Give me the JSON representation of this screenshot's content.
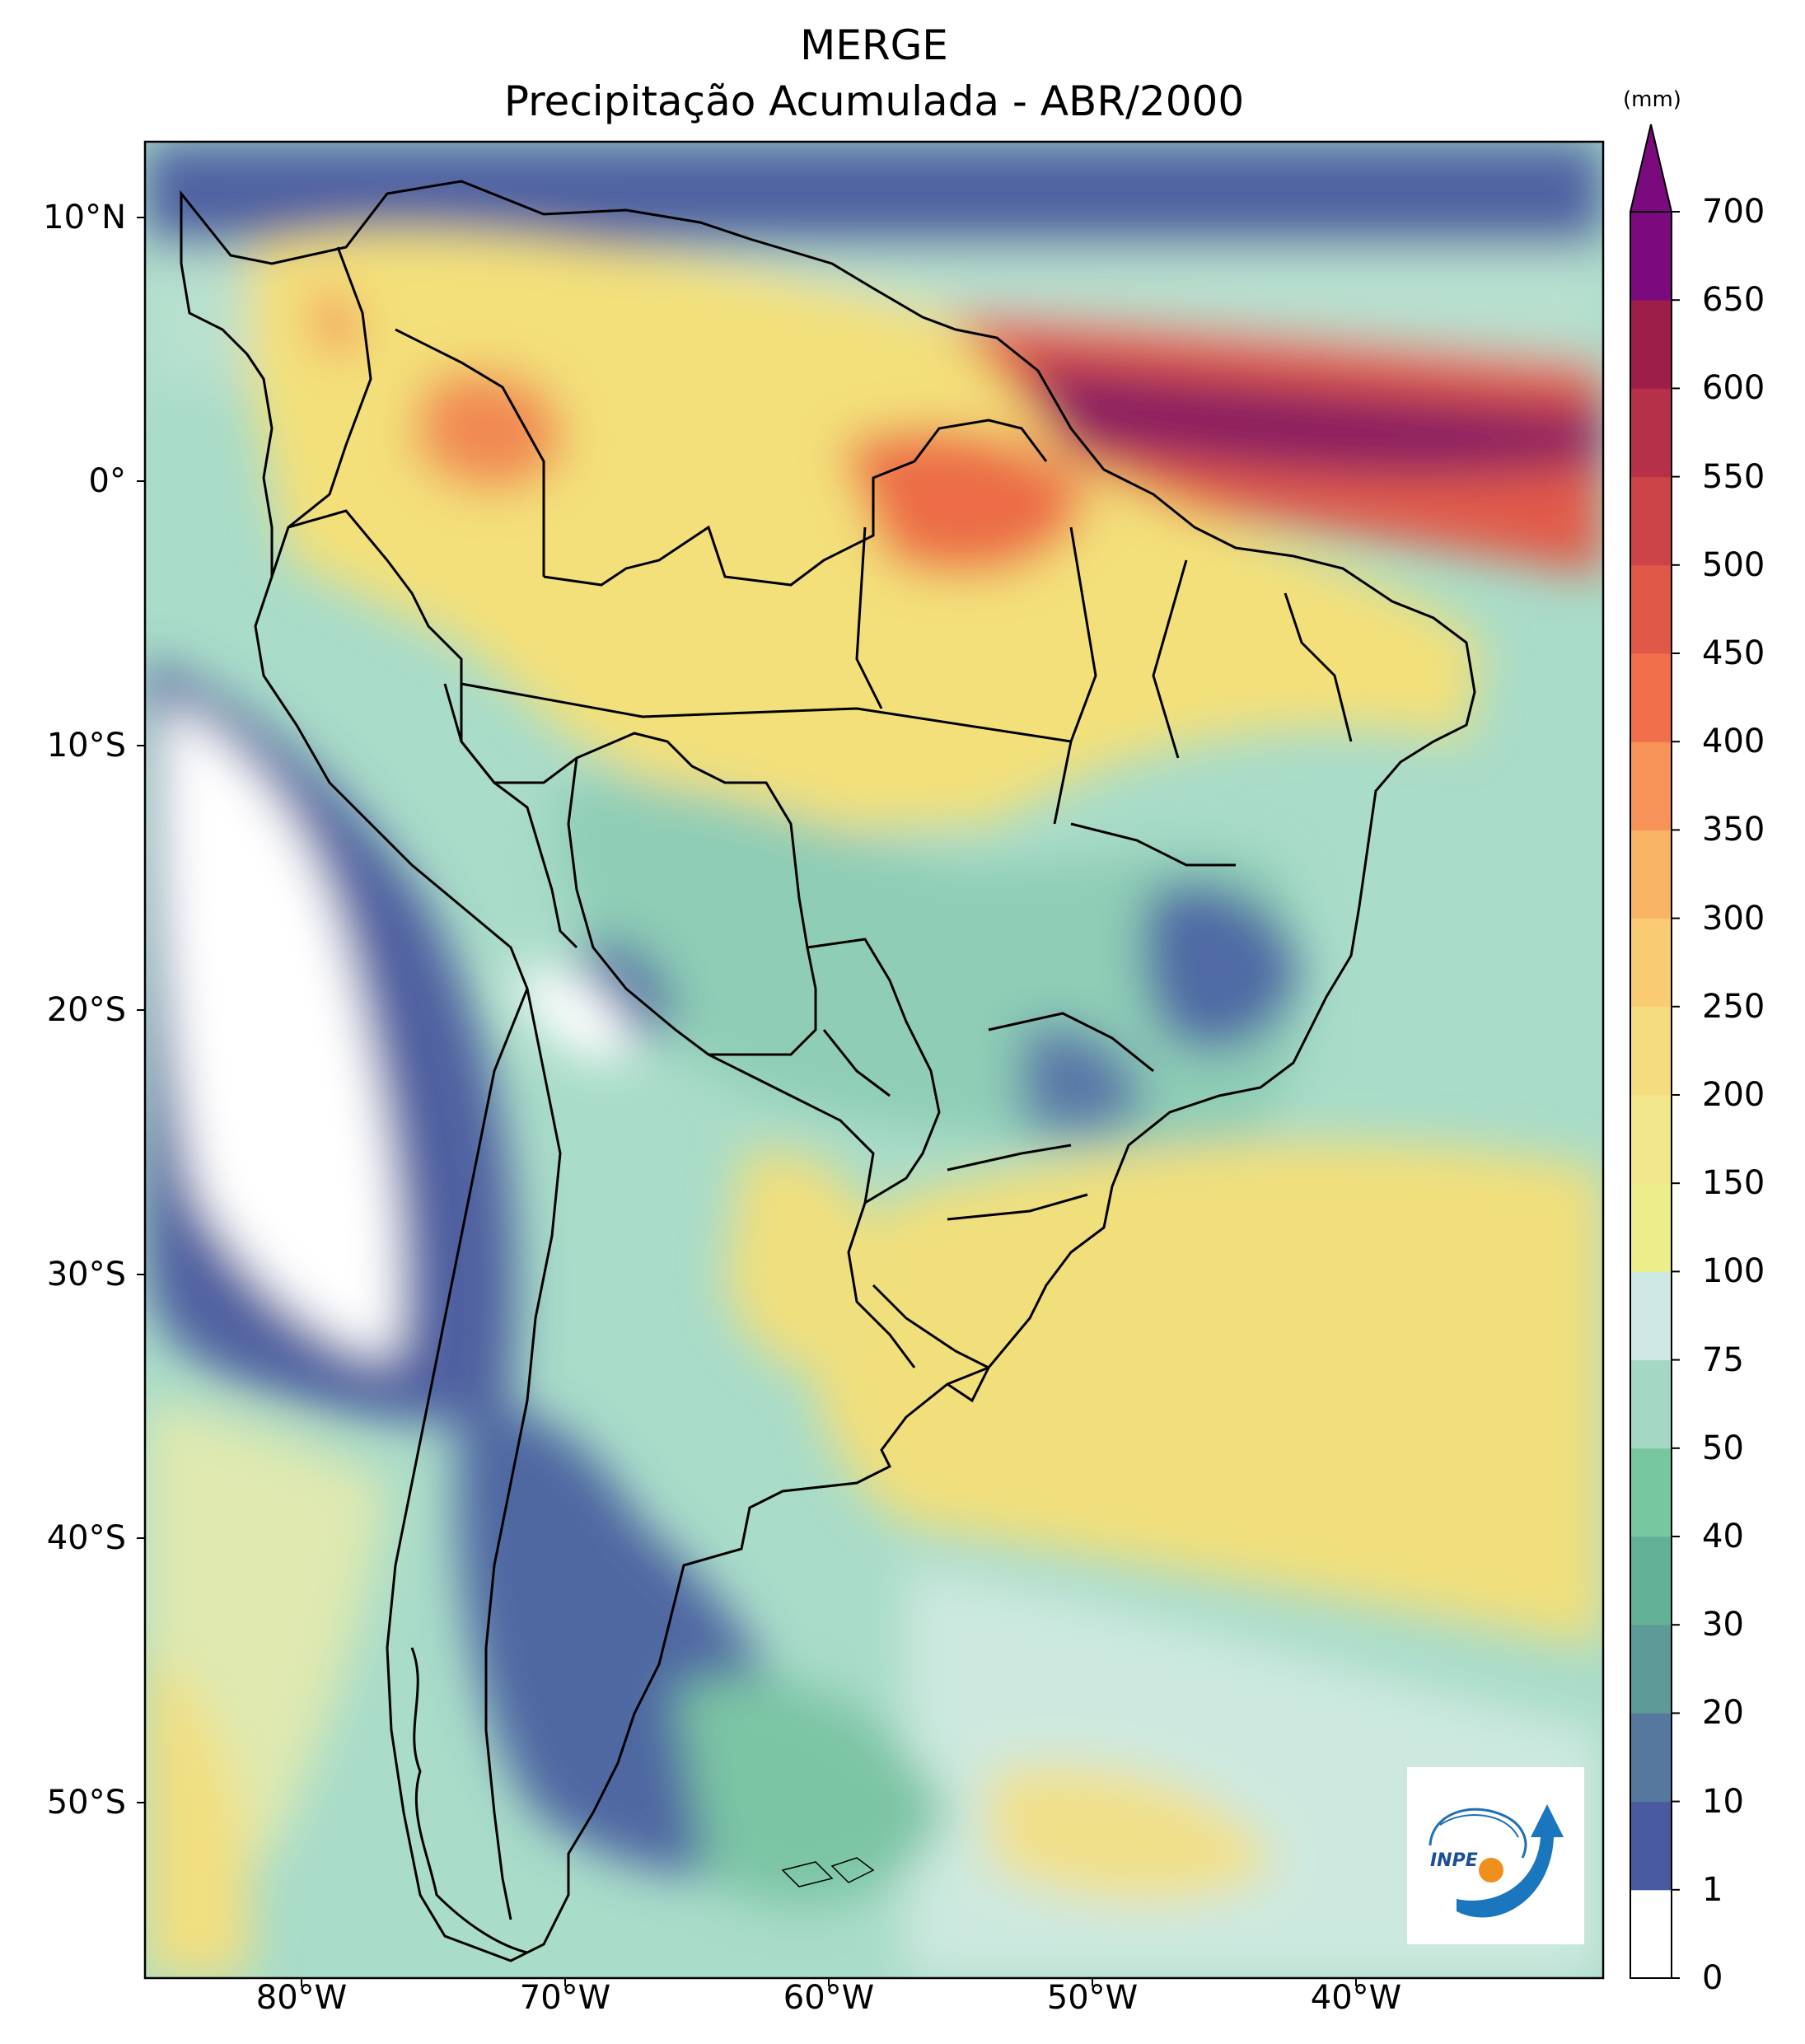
{
  "title_line1": "MERGE",
  "title_line2": "Precipitação Acumulada - ABR/2000",
  "lat_labels": [
    "10°N",
    "0°",
    "10°S",
    "20°S",
    "30°S",
    "40°S",
    "50°S"
  ],
  "lon_labels": [
    "80°W",
    "70°W",
    "60°W",
    "50°W",
    "40°W"
  ],
  "colorbar": {
    "unit": "(mm)",
    "levels": [
      "0",
      "1",
      "10",
      "20",
      "30",
      "40",
      "50",
      "75",
      "100",
      "150",
      "200",
      "250",
      "300",
      "350",
      "400",
      "450",
      "500",
      "550",
      "600",
      "650",
      "700"
    ],
    "colors": [
      "#ffffff",
      "#4a5aa0",
      "#56789e",
      "#5e9a98",
      "#62b096",
      "#76c6a0",
      "#a4d8c4",
      "#cee9e3",
      "#ecee8c",
      "#f2e78a",
      "#f6dc80",
      "#f9cc74",
      "#fab466",
      "#f79358",
      "#ef704a",
      "#e05848",
      "#cc4447",
      "#b53048",
      "#9e1e4a",
      "#7a0a7d"
    ],
    "extend_color": "#7a0a7d"
  },
  "logo_text": "INPE"
}
